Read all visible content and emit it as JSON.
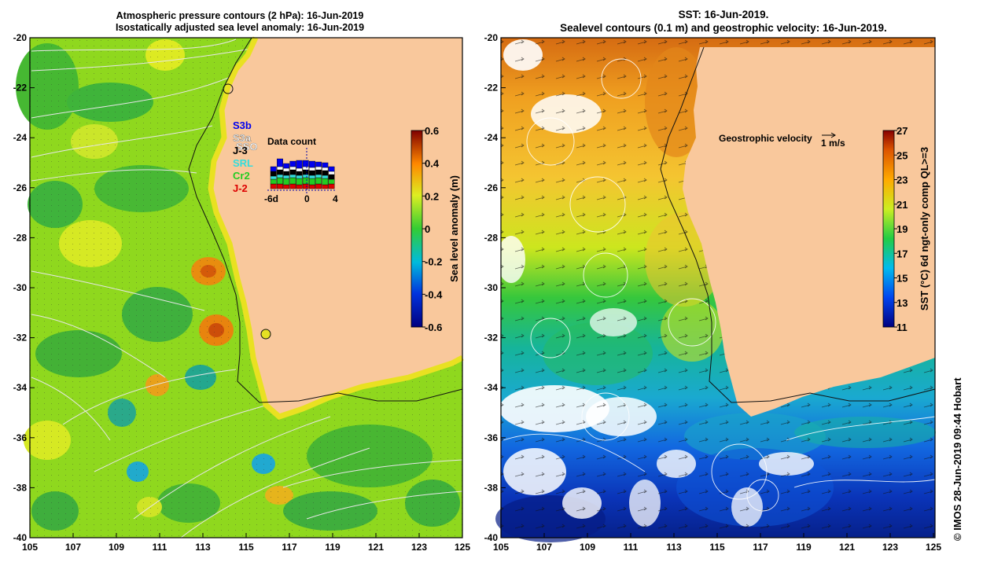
{
  "left_panel": {
    "title_line1": "Atmospheric pressure contours (2 hPa): 16-Jun-2019",
    "title_line2": "Isostatically adjusted sea level anomaly: 16-Jun-2019",
    "y_ticks": [
      "-20",
      "-22",
      "-24",
      "-26",
      "-28",
      "-30",
      "-32",
      "-34",
      "-36",
      "-38",
      "-40"
    ],
    "x_ticks": [
      "105",
      "107",
      "109",
      "111",
      "113",
      "115",
      "117",
      "119",
      "121",
      "123",
      "125"
    ],
    "satellites": [
      {
        "name": "S3b",
        "color": "#0000ee"
      },
      {
        "name": "S3a",
        "color": "#f4f4f4"
      },
      {
        "name": "SSO",
        "color": "#ffffff"
      },
      {
        "name": "J-3",
        "color": "#000000"
      },
      {
        "name": "SRL",
        "color": "#33dddd"
      },
      {
        "name": "Cr2",
        "color": "#22cc22"
      },
      {
        "name": "J-2",
        "color": "#dd0000"
      }
    ],
    "data_count": {
      "title": "Data count",
      "x_ticks": [
        "-6d",
        "0",
        "4"
      ]
    },
    "colorbar": {
      "label": "Sea level anomaly (m)",
      "ticks": [
        "0.6",
        "0.4",
        "0.2",
        "0",
        "-0.2",
        "-0.4",
        "-0.6"
      ],
      "range": [
        -0.6,
        0.6
      ]
    }
  },
  "right_panel": {
    "title_line1": "SST: 16-Jun-2019.",
    "title_line2": "Sealevel contours (0.1 m) and geostrophic velocity: 16-Jun-2019.",
    "y_ticks": [
      "-20",
      "-22",
      "-24",
      "-26",
      "-28",
      "-30",
      "-32",
      "-34",
      "-36",
      "-38",
      "-40"
    ],
    "x_ticks": [
      "105",
      "107",
      "109",
      "111",
      "113",
      "115",
      "117",
      "119",
      "121",
      "123",
      "125"
    ],
    "velocity_label": "Geostrophic velocity",
    "velocity_scale": "1 m/s",
    "colorbar": {
      "label": "SST (°C) 6d ngt-only comp QL>=3",
      "ticks": [
        "27",
        "25",
        "23",
        "21",
        "19",
        "17",
        "15",
        "13",
        "11"
      ],
      "range": [
        11,
        27
      ]
    }
  },
  "credit": "© IMOS 28-Jun-2019 09:44 Hobart",
  "colors": {
    "land": "#f9c89c",
    "sla_mid": "#66cc22",
    "sst_warm": "#dd7a10",
    "sst_cool": "#1133aa"
  }
}
